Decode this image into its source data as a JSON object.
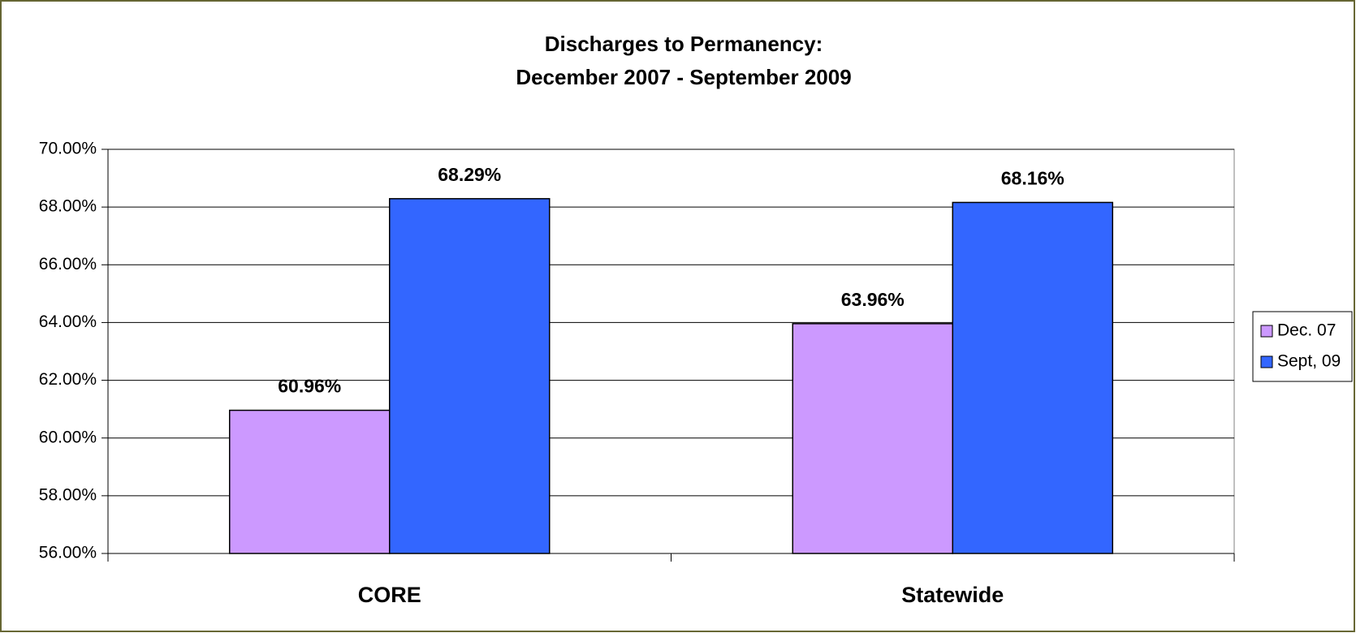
{
  "chart_data": {
    "type": "bar",
    "title": "Discharges to Permanency:",
    "subtitle": "December 2007 - September 2009",
    "categories": [
      "CORE",
      "Statewide"
    ],
    "series": [
      {
        "name": "Dec. 07",
        "color": "#cc99ff",
        "values": [
          60.96,
          63.96
        ],
        "value_labels": [
          "60.96%",
          "63.96%"
        ]
      },
      {
        "name": "Sept, 09",
        "color": "#3366ff",
        "values": [
          68.29,
          68.16
        ],
        "value_labels": [
          "68.29%",
          "68.16%"
        ]
      }
    ],
    "ylim": [
      56,
      70
    ],
    "yticks": [
      {
        "value": 56,
        "label": "56.00%"
      },
      {
        "value": 58,
        "label": "58.00%"
      },
      {
        "value": 60,
        "label": "60.00%"
      },
      {
        "value": 62,
        "label": "62.00%"
      },
      {
        "value": 64,
        "label": "64.00%"
      },
      {
        "value": 66,
        "label": "66.00%"
      },
      {
        "value": 68,
        "label": "68.00%"
      },
      {
        "value": 70,
        "label": "70.00%"
      }
    ],
    "grid": true,
    "legend": "right"
  }
}
